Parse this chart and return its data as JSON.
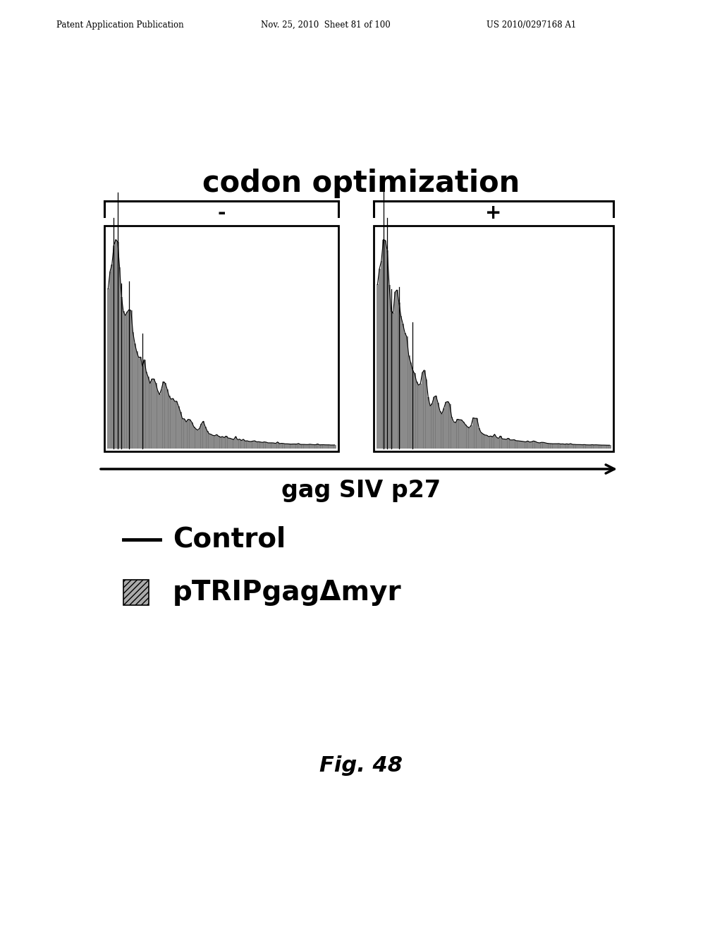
{
  "header_left": "Patent Application Publication",
  "header_center": "Nov. 25, 2010  Sheet 81 of 100",
  "header_right": "US 2010/0297168 A1",
  "title": "codon optimization",
  "minus_label": "-",
  "plus_label": "+",
  "x_axis_label": "gag SIV p27",
  "legend_control_label": "Control",
  "legend_ptripgag_label": "pTRIPgagΔmyr",
  "fig_label": "Fig. 48",
  "background_color": "#ffffff",
  "hist_fill_color": "#888888",
  "hist_line_color": "#000000",
  "panel_bg": "#ffffff",
  "bracket_color": "#000000"
}
